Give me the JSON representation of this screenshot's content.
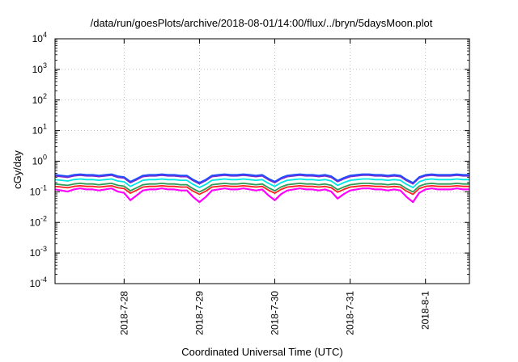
{
  "chart_data": {
    "type": "line",
    "title": "/data/run/goesPlots/archive/2018-08-01/14:00/flux/../bryn/5daysMoon.plot",
    "xlabel": "Coordinated Universal Time (UTC)",
    "ylabel": "cGy/day",
    "yscale": "log",
    "ylim": [
      0.0001,
      10000
    ],
    "y_tick_exponents": [
      "-4",
      "-3",
      "-2",
      "-1",
      "0",
      "1",
      "2",
      "3",
      "4"
    ],
    "y_tick_base": "10",
    "x_range_days": [
      "2018-07-27T02:00",
      "2018-08-01T14:00"
    ],
    "x_ticks": [
      {
        "date": "2018-07-28T00:00",
        "label": "2018-7-28"
      },
      {
        "date": "2018-07-29T00:00",
        "label": "2018-7-29"
      },
      {
        "date": "2018-07-30T00:00",
        "label": "2018-7-30"
      },
      {
        "date": "2018-07-31T00:00",
        "label": "2018-7-31"
      },
      {
        "date": "2018-08-01T00:00",
        "label": "2018-8-1"
      }
    ],
    "grid": true,
    "legend": "none",
    "series": [
      {
        "color": "#ff00ff",
        "base": 0.12
      },
      {
        "color": "#ff2020",
        "base": 0.15
      },
      {
        "color": "#2a9d58",
        "base": 0.18
      },
      {
        "color": "#00e5e5",
        "base": 0.25
      },
      {
        "color": "#7a2ad0",
        "base": 0.33
      },
      {
        "color": "#1e4fff",
        "base": 0.36
      }
    ],
    "sample_times": [
      "2018-07-27T02:00",
      "2018-07-27T04:00",
      "2018-07-27T06:00",
      "2018-07-27T08:00",
      "2018-07-27T10:00",
      "2018-07-27T12:00",
      "2018-07-27T14:00",
      "2018-07-27T16:00",
      "2018-07-27T18:00",
      "2018-07-27T20:00",
      "2018-07-27T22:00",
      "2018-07-28T00:00",
      "2018-07-28T02:00",
      "2018-07-28T04:00",
      "2018-07-28T06:00",
      "2018-07-28T08:00",
      "2018-07-28T10:00",
      "2018-07-28T12:00",
      "2018-07-28T14:00",
      "2018-07-28T16:00",
      "2018-07-28T18:00",
      "2018-07-28T20:00",
      "2018-07-28T22:00",
      "2018-07-29T00:00",
      "2018-07-29T02:00",
      "2018-07-29T04:00",
      "2018-07-29T06:00",
      "2018-07-29T08:00",
      "2018-07-29T10:00",
      "2018-07-29T12:00",
      "2018-07-29T14:00",
      "2018-07-29T16:00",
      "2018-07-29T18:00",
      "2018-07-29T20:00",
      "2018-07-29T22:00",
      "2018-07-30T00:00",
      "2018-07-30T02:00",
      "2018-07-30T04:00",
      "2018-07-30T06:00",
      "2018-07-30T08:00",
      "2018-07-30T10:00",
      "2018-07-30T12:00",
      "2018-07-30T14:00",
      "2018-07-30T16:00",
      "2018-07-30T18:00",
      "2018-07-30T20:00",
      "2018-07-30T22:00",
      "2018-07-31T00:00",
      "2018-07-31T02:00",
      "2018-07-31T04:00",
      "2018-07-31T06:00",
      "2018-07-31T08:00",
      "2018-07-31T10:00",
      "2018-07-31T12:00",
      "2018-07-31T14:00",
      "2018-07-31T16:00",
      "2018-07-31T18:00",
      "2018-07-31T20:00",
      "2018-07-31T22:00",
      "2018-08-01T00:00",
      "2018-08-01T02:00",
      "2018-08-01T04:00",
      "2018-08-01T06:00",
      "2018-08-01T08:00",
      "2018-08-01T10:00",
      "2018-08-01T12:00",
      "2018-08-01T14:00"
    ],
    "sample_factors": [
      1.0,
      0.95,
      0.9,
      1.0,
      1.05,
      1.0,
      1.0,
      0.95,
      1.0,
      1.05,
      0.9,
      0.85,
      0.6,
      0.75,
      0.95,
      1.0,
      1.0,
      1.05,
      1.0,
      1.0,
      0.95,
      0.95,
      0.7,
      0.55,
      0.7,
      0.95,
      1.0,
      1.05,
      1.0,
      1.0,
      1.05,
      1.0,
      0.95,
      1.0,
      0.75,
      0.6,
      0.8,
      0.95,
      1.0,
      1.05,
      1.0,
      1.0,
      0.95,
      1.0,
      0.9,
      0.65,
      0.8,
      0.95,
      1.0,
      1.05,
      1.05,
      1.0,
      1.0,
      0.95,
      1.0,
      0.95,
      0.7,
      0.55,
      0.85,
      1.0,
      1.05,
      1.0,
      1.0,
      1.0,
      1.05,
      1.0,
      1.0
    ]
  }
}
